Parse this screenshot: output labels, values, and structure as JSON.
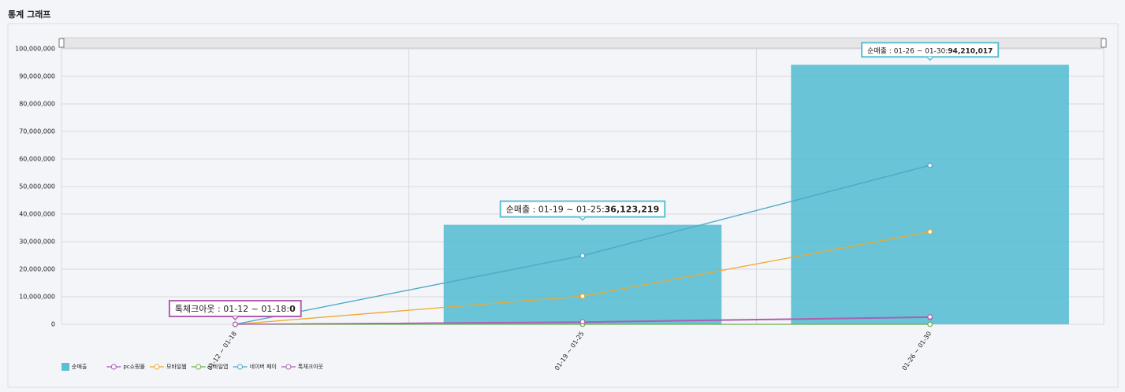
{
  "chart_data": {
    "type": "combo",
    "title": "통계 그래프",
    "categories": [
      "01-12 ~ 01-18",
      "01-19 ~ 01-25",
      "01-26 ~ 01-30"
    ],
    "ylim": [
      0,
      100000000
    ],
    "yticks": [
      0,
      {
        "value": 10000000,
        "label": "10,000,000"
      },
      {
        "value": 20000000,
        "label": "20,000,000"
      },
      {
        "value": 30000000,
        "label": "30,000,000"
      },
      {
        "value": 40000000,
        "label": "40,000,000"
      },
      {
        "value": 50000000,
        "label": "50,000,000"
      },
      {
        "value": 60000000,
        "label": "60,000,000"
      },
      {
        "value": 70000000,
        "label": "70,000,000"
      },
      {
        "value": 80000000,
        "label": "80,000,000"
      },
      {
        "value": 90000000,
        "label": "90,000,000"
      },
      {
        "value": 100000000,
        "label": "100,000,000"
      }
    ],
    "grid": true,
    "series": [
      {
        "name": "순매출",
        "type": "bar",
        "color": "#5bbfd3",
        "values": [
          0,
          36123219,
          94210017
        ]
      },
      {
        "name": "pc쇼핑몰",
        "type": "line",
        "color": "#a45bb8",
        "values": [
          0,
          700000,
          2500000
        ]
      },
      {
        "name": "모바일웹",
        "type": "line",
        "color": "#f0a830",
        "values": [
          0,
          10200000,
          33600000
        ]
      },
      {
        "name": "모바일앱",
        "type": "line",
        "color": "#6ab04c",
        "values": [
          0,
          0,
          0
        ]
      },
      {
        "name": "네이버 페이",
        "type": "line",
        "color": "#4aa8c8",
        "values": [
          0,
          24900000,
          57700000
        ]
      },
      {
        "name": "톡체크아웃",
        "type": "line",
        "color": "#b060b0",
        "values": [
          0,
          900000,
          2700000
        ]
      }
    ],
    "annotations": [
      {
        "text": "톡체크아웃 : 01-12 ~ 01-18:",
        "label": "0"
      },
      {
        "text": "순매출 : 01-19 ~ 01-25:",
        "label": "36,123,219"
      },
      {
        "text": "순매출 : 01-26 ~ 01-30:",
        "label": "94,210,017"
      }
    ]
  }
}
